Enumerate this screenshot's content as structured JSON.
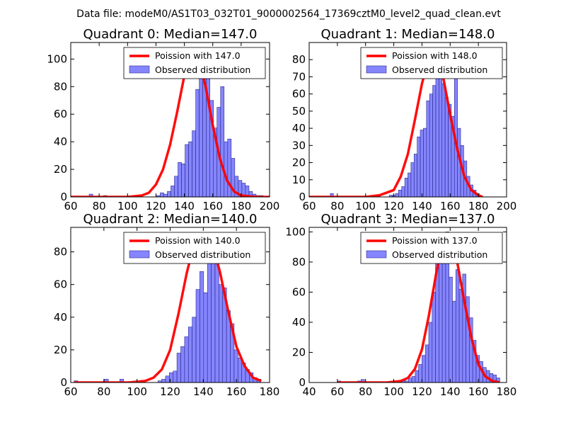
{
  "figure_title": "Data file: modeM0/AS1T03_032T01_9000002564_17369cztM0_level2_quad_clean.evt",
  "colors": {
    "poisson": "#ff0000",
    "bars": "#7070ff",
    "bar_edge": "#2a2a8a",
    "axis": "#000000"
  },
  "chart_data": [
    {
      "type": "bar",
      "title": "Quadrant 0: Median=147.0",
      "xlim": [
        60,
        200
      ],
      "ylim": [
        0,
        112
      ],
      "xticks": [
        60,
        80,
        100,
        120,
        140,
        160,
        180,
        200
      ],
      "yticks": [
        0,
        20,
        40,
        60,
        80,
        100
      ],
      "legend": [
        "Poission with 147.0",
        "Observed distribution"
      ],
      "bin_start": 73,
      "bin_width": 2.5,
      "counts": [
        2,
        0,
        0,
        0,
        1,
        0,
        0,
        0,
        0,
        0,
        0,
        0,
        0,
        0,
        0,
        0,
        0,
        0,
        0,
        1,
        3,
        2,
        4,
        8,
        15,
        25,
        24,
        38,
        40,
        48,
        78,
        105,
        102,
        92,
        70,
        50,
        65,
        80,
        40,
        42,
        28,
        15,
        12,
        10,
        8,
        4,
        2,
        1,
        1
      ],
      "poisson_mean": 147,
      "poisson_x": [
        60,
        100,
        110,
        115,
        120,
        125,
        130,
        135,
        140,
        145,
        147,
        150,
        155,
        160,
        165,
        170,
        175,
        180,
        190,
        200
      ],
      "poisson_y": [
        0,
        0,
        1,
        3,
        9,
        20,
        38,
        62,
        88,
        104,
        106,
        100,
        80,
        52,
        28,
        12,
        4,
        1,
        0,
        0
      ]
    },
    {
      "type": "bar",
      "title": "Quadrant 1: Median=148.0",
      "xlim": [
        60,
        200
      ],
      "ylim": [
        0,
        90
      ],
      "xticks": [
        60,
        80,
        100,
        120,
        140,
        160,
        180,
        200
      ],
      "yticks": [
        0,
        10,
        20,
        30,
        40,
        50,
        60,
        70,
        80
      ],
      "legend": [
        "Poission with 148.0",
        "Observed distribution"
      ],
      "bin_start": 75,
      "bin_width": 2.2,
      "counts": [
        2,
        0,
        0,
        0,
        0,
        0,
        0,
        0,
        0,
        0,
        0,
        0,
        0,
        0,
        0,
        1,
        0,
        0,
        0,
        1,
        1,
        2,
        4,
        6,
        11,
        14,
        20,
        25,
        35,
        39,
        40,
        56,
        60,
        65,
        72,
        70,
        66,
        58,
        54,
        47,
        74,
        40,
        30,
        21,
        12,
        7,
        4,
        2
      ],
      "poisson_mean": 148,
      "poisson_x": [
        60,
        100,
        110,
        120,
        125,
        130,
        135,
        140,
        145,
        148,
        150,
        155,
        160,
        165,
        170,
        175,
        180,
        183
      ],
      "poisson_y": [
        0,
        0,
        1,
        4,
        12,
        25,
        45,
        66,
        82,
        85,
        84,
        70,
        48,
        28,
        12,
        4,
        1,
        0
      ]
    },
    {
      "type": "bar",
      "title": "Quadrant 2: Median=140.0",
      "xlim": [
        60,
        180
      ],
      "ylim": [
        0,
        95
      ],
      "xticks": [
        60,
        80,
        100,
        120,
        140,
        160,
        180
      ],
      "yticks": [
        0,
        20,
        40,
        60,
        80
      ],
      "legend": [
        "Poission with 140.0",
        "Observed distribution"
      ],
      "bin_start": 62,
      "bin_width": 2.3,
      "counts": [
        1,
        0,
        0,
        0,
        0,
        0,
        0,
        0,
        2,
        0,
        0,
        0,
        2,
        0,
        0,
        0,
        0,
        0,
        0,
        0,
        0,
        0,
        1,
        2,
        4,
        6,
        7,
        18,
        22,
        28,
        34,
        40,
        57,
        68,
        55,
        84,
        76,
        75,
        60,
        58,
        44,
        36,
        20,
        15,
        12,
        8,
        6,
        3,
        2
      ],
      "poisson_mean": 140,
      "poisson_x": [
        62,
        95,
        105,
        110,
        115,
        120,
        125,
        130,
        135,
        140,
        145,
        150,
        155,
        160,
        165,
        170,
        175
      ],
      "poisson_y": [
        0,
        0,
        1,
        3,
        8,
        20,
        42,
        67,
        87,
        91,
        86,
        68,
        44,
        22,
        10,
        3,
        1
      ]
    },
    {
      "type": "bar",
      "title": "Quadrant 3: Median=137.0",
      "xlim": [
        40,
        180
      ],
      "ylim": [
        0,
        103
      ],
      "xticks": [
        40,
        60,
        80,
        100,
        120,
        140,
        160,
        180
      ],
      "yticks": [
        0,
        20,
        40,
        60,
        80,
        100
      ],
      "legend": [
        "Poission with 137.0",
        "Observed distribution"
      ],
      "bin_start": 60,
      "bin_width": 2.4,
      "counts": [
        1,
        0,
        0,
        0,
        0,
        0,
        1,
        2,
        0,
        0,
        0,
        0,
        0,
        0,
        0,
        0,
        0,
        0,
        0,
        1,
        1,
        3,
        4,
        8,
        12,
        18,
        25,
        40,
        60,
        95,
        98,
        82,
        100,
        70,
        54,
        75,
        62,
        72,
        57,
        43,
        28,
        18,
        14,
        10,
        8,
        6,
        5,
        3
      ],
      "poisson_mean": 137,
      "poisson_x": [
        60,
        95,
        105,
        110,
        115,
        120,
        125,
        130,
        135,
        137,
        140,
        145,
        150,
        155,
        160,
        165,
        170,
        175
      ],
      "poisson_y": [
        0,
        0,
        1,
        3,
        9,
        22,
        45,
        72,
        95,
        99,
        96,
        80,
        54,
        30,
        12,
        4,
        1,
        0
      ]
    }
  ]
}
